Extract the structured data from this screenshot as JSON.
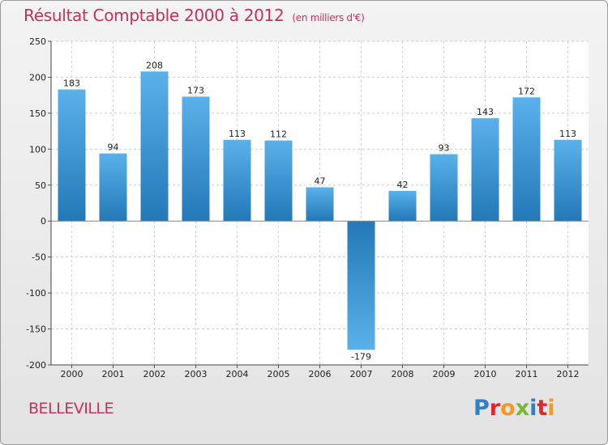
{
  "header": {
    "title": "Résultat Comptable 2000 à 2012",
    "unit": "(en milliers d'€)"
  },
  "footer": {
    "commune": "BELLEVILLE",
    "logo_letters": [
      {
        "char": "P",
        "color": "#2f7fc9"
      },
      {
        "char": "r",
        "color": "#e2262c"
      },
      {
        "char": "o",
        "color": "#f29a1f"
      },
      {
        "char": "x",
        "color": "#79b833"
      },
      {
        "char": "i",
        "color": "#2f7fc9"
      },
      {
        "char": "t",
        "color": "#e2262c"
      },
      {
        "char": "i",
        "color": "#f29a1f"
      }
    ]
  },
  "colors": {
    "bar_light": "#5ab1ea",
    "bar_dark": "#2378b7",
    "accent": "#c8325a"
  },
  "chart_data": {
    "type": "bar",
    "title": "Résultat Comptable 2000 à 2012",
    "xlabel": "",
    "ylabel": "en milliers d'€",
    "categories": [
      "2000",
      "2001",
      "2002",
      "2003",
      "2004",
      "2005",
      "2006",
      "2007",
      "2008",
      "2009",
      "2010",
      "2011",
      "2012"
    ],
    "values": [
      183,
      94,
      208,
      173,
      113,
      112,
      47,
      -179,
      42,
      93,
      143,
      172,
      113
    ],
    "value_labels": [
      "183",
      "94",
      "208",
      "173",
      "113",
      "112",
      "47",
      "-179",
      "42",
      "93",
      "143",
      "172",
      "113"
    ],
    "ylim": [
      -200,
      250
    ],
    "yticks": [
      -200,
      -150,
      -100,
      -50,
      0,
      50,
      100,
      150,
      200,
      250
    ],
    "ytick_labels": [
      "-200",
      "-150",
      "-100",
      "-50",
      "0",
      "50",
      "100",
      "150",
      "200",
      "250"
    ],
    "grid": true
  }
}
